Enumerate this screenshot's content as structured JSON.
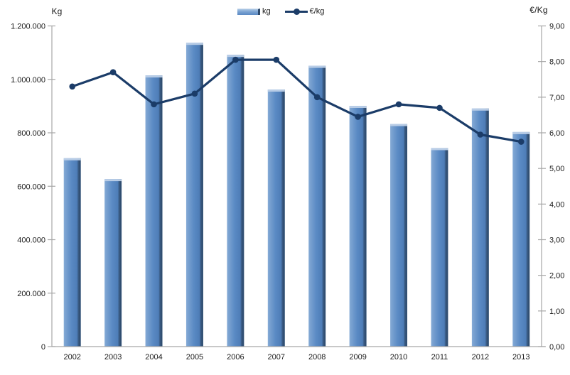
{
  "chart": {
    "left_axis_title": "Kg",
    "right_axis_title": "€/Kg",
    "legend": {
      "bar_label": "kg",
      "line_label": "€/kg"
    },
    "colors": {
      "bar_main": "#5a8ac4",
      "bar_light": "#89aed8",
      "bar_dark": "#2e4a6b",
      "bar_top": "#bdd0e8",
      "line": "#1b3c68",
      "axis": "#a6a6a6",
      "text": "#1a1a1a"
    }
  },
  "chart_data": {
    "type": "bar+line",
    "title": "",
    "categories": [
      "2002",
      "2003",
      "2004",
      "2005",
      "2006",
      "2007",
      "2008",
      "2009",
      "2010",
      "2011",
      "2012",
      "2013"
    ],
    "series": [
      {
        "name": "kg",
        "type": "bar",
        "axis": "left",
        "values": [
          705000,
          627000,
          1015000,
          1137000,
          1092000,
          962000,
          1051000,
          901000,
          833000,
          743000,
          891000,
          803000
        ]
      },
      {
        "name": "€/kg",
        "type": "line",
        "axis": "right",
        "values": [
          7.3,
          7.7,
          6.8,
          7.1,
          8.05,
          8.05,
          7.0,
          6.45,
          6.8,
          6.7,
          5.95,
          5.75
        ]
      }
    ],
    "left_axis": {
      "label": "Kg",
      "min": 0,
      "max": 1200000,
      "step": 200000,
      "tick_labels": [
        "1.200.000",
        "1.000.000",
        "800.000",
        "600.000",
        "400.000",
        "200.000",
        "0"
      ]
    },
    "right_axis": {
      "label": "€/Kg",
      "min": 0,
      "max": 9,
      "step": 1,
      "tick_labels": [
        "9,00",
        "8,00",
        "7,00",
        "6,00",
        "5,00",
        "4,00",
        "3,00",
        "2,00",
        "1,00",
        "0,00"
      ]
    },
    "grid": false,
    "legend_position": "top-center"
  }
}
